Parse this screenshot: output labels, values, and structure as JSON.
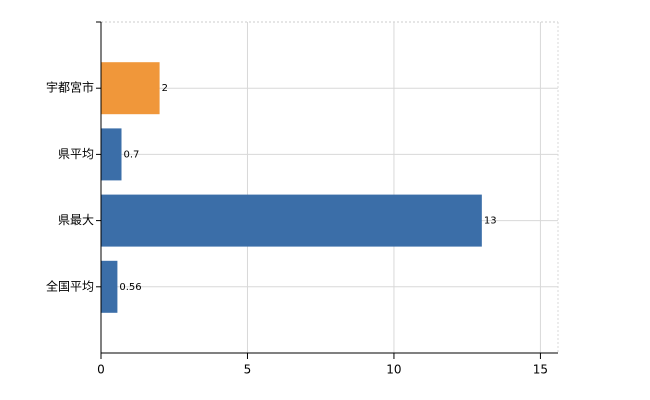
{
  "chart_data": {
    "type": "barh",
    "categories": [
      "宇都宮市",
      "県平均",
      "県最大",
      "全国平均"
    ],
    "values": [
      2,
      0.7,
      13,
      0.56
    ],
    "colors": [
      "#f0973a",
      "#3b6ea8",
      "#3b6ea8",
      "#3b6ea8"
    ],
    "xlim": [
      0,
      15.6
    ],
    "xticks": [
      0,
      5,
      10,
      15
    ],
    "grid": true
  }
}
